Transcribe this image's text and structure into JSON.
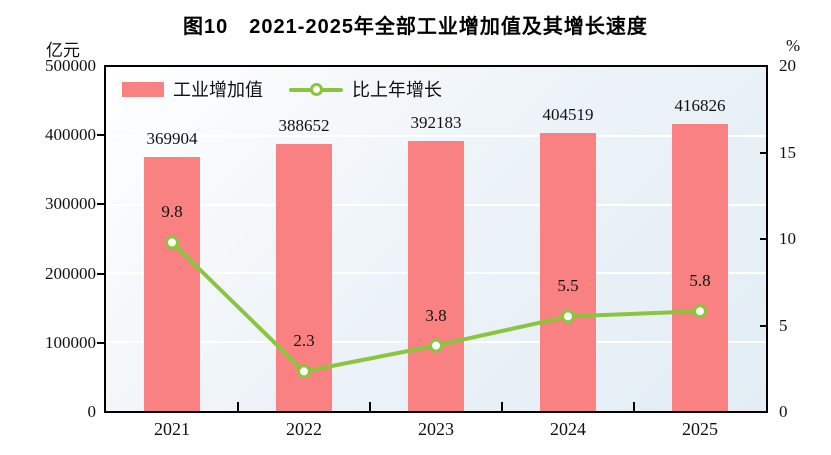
{
  "title": "图10　2021-2025年全部工业增加值及其增长速度",
  "left_axis": {
    "unit": "亿元",
    "tick_labels": [
      "500000",
      "400000",
      "300000",
      "200000",
      "100000",
      "0"
    ]
  },
  "right_axis": {
    "unit": "%",
    "tick_labels": [
      "20",
      "15",
      "10",
      "5",
      "0"
    ]
  },
  "legend": {
    "bar_label": "工业增加值",
    "line_label": "比上年增长"
  },
  "colors": {
    "bar": "#f98181",
    "line": "#8bc43f",
    "marker_fill": "#ffffff",
    "gridline": "#ffffff",
    "axis": "#000000"
  },
  "chart_data": {
    "type": "bar+line combo",
    "title": "图10　2021-2025年全部工业增加值及其增长速度",
    "categories": [
      "2021",
      "2022",
      "2023",
      "2024",
      "2025"
    ],
    "series": [
      {
        "name": "工业增加值",
        "type": "bar",
        "axis": "left",
        "unit": "亿元",
        "values": [
          369904,
          388652,
          392183,
          404519,
          416826
        ],
        "color": "#f98181"
      },
      {
        "name": "比上年增长",
        "type": "line",
        "axis": "right",
        "unit": "%",
        "values": [
          9.8,
          2.3,
          3.8,
          5.5,
          5.8
        ],
        "color": "#8bc43f"
      }
    ],
    "left_ylim": [
      0,
      500000
    ],
    "left_tick_step": 100000,
    "right_ylim": [
      0,
      20
    ],
    "right_tick_step": 5,
    "grid": "horizontal white gridlines at left-axis tick levels",
    "legend_position": "top-left inside plot area",
    "plot_background": "white to light-blue diagonal gradient"
  }
}
